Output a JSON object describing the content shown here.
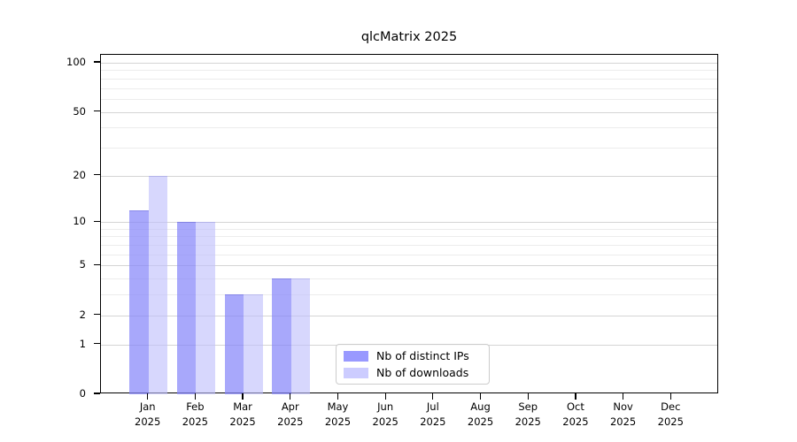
{
  "chart_data": {
    "type": "bar",
    "title": "qlcMatrix 2025",
    "categories": [
      "Jan 2025",
      "Feb 2025",
      "Mar 2025",
      "Apr 2025",
      "May 2025",
      "Jun 2025",
      "Jul 2025",
      "Aug 2025",
      "Sep 2025",
      "Oct 2025",
      "Nov 2025",
      "Dec 2025"
    ],
    "series": [
      {
        "name": "Nb of distinct IPs",
        "color": "#9999ff",
        "fill": "rgba(135,135,250,0.72)",
        "edge": "rgba(100,100,210,0.45)",
        "values": [
          12,
          10,
          3,
          4,
          0,
          0,
          0,
          0,
          0,
          0,
          0,
          0
        ]
      },
      {
        "name": "Nb of downloads",
        "color": "#ccccff",
        "fill": "rgba(190,190,252,0.62)",
        "edge": "rgba(150,150,225,0.4)",
        "values": [
          20,
          10,
          3,
          4,
          0,
          0,
          0,
          0,
          0,
          0,
          0,
          0
        ]
      }
    ],
    "yscale": "log1p",
    "ylim": [
      0,
      112
    ],
    "yticks": [
      0,
      1,
      2,
      5,
      10,
      20,
      50,
      100
    ],
    "minor_gridlines": [
      3,
      4,
      6,
      7,
      8,
      9,
      30,
      40,
      60,
      70,
      80,
      90
    ],
    "grid": true,
    "legend_position": "lower center"
  },
  "colors": {
    "major_grid": "#d4d4d4",
    "minor_grid": "#ececec",
    "spine": "#000000",
    "text": "#000000",
    "background": "#ffffff"
  }
}
